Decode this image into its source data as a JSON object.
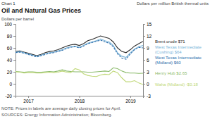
{
  "chart_data": {
    "type": "line",
    "title": "Oil and Natural Gas Prices",
    "subtitle": "Chart 1",
    "ylabel": "Dollars per barrel",
    "y2label": "Dollars per million British thermal units",
    "annotations": [
      "NOTE: Prices in labels are average daily closing prices for April.",
      "SOURCES: Energy Information Administration; Bloomberg."
    ],
    "categories": [
      null,
      null,
      null,
      "2017",
      null,
      null,
      null,
      null,
      null,
      null,
      null,
      null,
      null,
      null,
      null,
      "2018",
      null,
      null,
      null,
      null,
      null,
      null,
      null,
      null,
      null,
      null,
      null,
      "2019",
      null,
      null,
      null
    ],
    "ylim": [
      -20,
      100
    ],
    "yticks": [
      -20,
      0,
      20,
      40,
      60,
      80,
      100
    ],
    "y2lim": [
      -3,
      15
    ],
    "y2ticks": [
      -3,
      0,
      3,
      6,
      9,
      12,
      15
    ],
    "series": [
      {
        "name": "Brent crude $71",
        "color": "#2d2d2d",
        "values": [
          54,
          55,
          53,
          51,
          49,
          47,
          49,
          52,
          54,
          55,
          57,
          60,
          63,
          65,
          66,
          64,
          67,
          72,
          74,
          77,
          80,
          78,
          76,
          70,
          60,
          54,
          52,
          57,
          63,
          67,
          71
        ]
      },
      {
        "name": "West Texas Intermediate\n(Cushing) $64",
        "color": "#7ab4d8",
        "values": [
          53,
          54,
          52,
          50,
          48,
          46,
          48,
          50,
          52,
          53,
          55,
          57,
          60,
          62,
          63,
          61,
          64,
          68,
          70,
          72,
          75,
          72,
          70,
          64,
          52,
          46,
          44,
          52,
          58,
          62,
          64
        ]
      },
      {
        "name": "West Texas Intermediate\n(Midland) $60",
        "color": "#2c6fad",
        "line_style": "dashed",
        "values": [
          52,
          53,
          51,
          49,
          47,
          45,
          47,
          49,
          51,
          52,
          54,
          56,
          59,
          61,
          62,
          60,
          63,
          67,
          69,
          71,
          73,
          70,
          68,
          62,
          50,
          43,
          41,
          50,
          57,
          61,
          60
        ]
      },
      {
        "name": "Henry Hub $2.65",
        "color": "#8aba6a",
        "axis": "y2",
        "values": [
          3.1,
          3.0,
          2.9,
          3.0,
          3.0,
          2.9,
          2.9,
          3.0,
          3.1,
          3.0,
          3.2,
          3.5,
          3.2,
          3.1,
          3.0,
          3.0,
          3.0,
          2.9,
          2.9,
          3.0,
          3.1,
          3.2,
          3.1,
          4.0,
          3.8,
          3.2,
          2.8,
          2.7,
          2.7,
          2.6,
          2.65
        ]
      },
      {
        "name": "Waha (Midland) -$0.18",
        "color": "#c0d878",
        "axis": "y2",
        "values": [
          3.0,
          2.9,
          2.7,
          2.8,
          2.8,
          2.7,
          2.7,
          2.8,
          2.9,
          2.8,
          2.9,
          3.2,
          2.9,
          2.8,
          3.8,
          3.5,
          2.5,
          2.1,
          1.9,
          1.8,
          2.2,
          2.4,
          2.3,
          3.2,
          2.8,
          1.5,
          0.5,
          0.5,
          0.8,
          0.2,
          -0.18
        ]
      }
    ]
  }
}
